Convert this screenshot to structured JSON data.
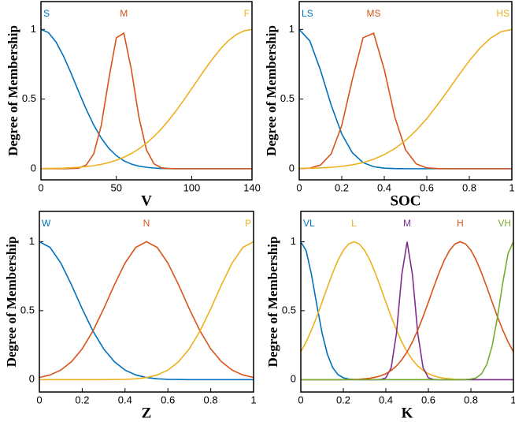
{
  "chart_data": [
    {
      "type": "line",
      "xlabel": "V",
      "ylabel": "Degree of Membership",
      "x": [
        0,
        5,
        10,
        15,
        20,
        25,
        30,
        35,
        40,
        45,
        50,
        55,
        60,
        65,
        70,
        75,
        80,
        85,
        90,
        95,
        100,
        105,
        110,
        115,
        120,
        125,
        130,
        135,
        140
      ],
      "series": [
        {
          "name": "S",
          "color": "#0072bd",
          "values": [
            1,
            0.977,
            0.91,
            0.808,
            0.685,
            0.554,
            0.427,
            0.314,
            0.22,
            0.147,
            0.094,
            0.057,
            0.033,
            0.018,
            0.01,
            0.005,
            0.002,
            0.001,
            0,
            0,
            0,
            0,
            0,
            0,
            0,
            0,
            0,
            0,
            0
          ]
        },
        {
          "name": "M",
          "color": "#d95319",
          "values": [
            0,
            0,
            0,
            0,
            0.001,
            0.004,
            0.026,
            0.106,
            0.31,
            0.642,
            0.94,
            0.973,
            0.71,
            0.369,
            0.135,
            0.035,
            0.006,
            0.001,
            0,
            0,
            0,
            0,
            0,
            0,
            0,
            0,
            0,
            0,
            0
          ]
        },
        {
          "name": "F",
          "color": "#edb120",
          "values": [
            0.001,
            0.002,
            0.003,
            0.004,
            0.007,
            0.01,
            0.015,
            0.022,
            0.031,
            0.044,
            0.061,
            0.082,
            0.109,
            0.143,
            0.183,
            0.232,
            0.287,
            0.351,
            0.421,
            0.496,
            0.575,
            0.654,
            0.732,
            0.805,
            0.871,
            0.925,
            0.966,
            0.991,
            1
          ]
        }
      ],
      "xlim": [
        0,
        140
      ],
      "ylim": [
        -0.08,
        1.2
      ],
      "xticks": [
        0,
        50,
        100,
        140
      ],
      "yticks": [
        0,
        0.5,
        1
      ]
    },
    {
      "type": "line",
      "xlabel": "SOC",
      "ylabel": "Degree of Membership",
      "x": [
        0,
        0.05,
        0.1,
        0.15,
        0.2,
        0.25,
        0.3,
        0.35,
        0.4,
        0.45,
        0.5,
        0.55,
        0.6,
        0.65,
        0.7,
        0.75,
        0.8,
        0.85,
        0.9,
        0.95,
        1
      ],
      "series": [
        {
          "name": "LS",
          "color": "#0072bd",
          "values": [
            1,
            0.917,
            0.707,
            0.458,
            0.249,
            0.114,
            0.044,
            0.014,
            0.004,
            0.001,
            0,
            0,
            0,
            0,
            0,
            0,
            0,
            0,
            0,
            0,
            0
          ]
        },
        {
          "name": "MS",
          "color": "#d95319",
          "values": [
            0.001,
            0.004,
            0.026,
            0.106,
            0.31,
            0.642,
            0.94,
            0.973,
            0.712,
            0.369,
            0.135,
            0.035,
            0.006,
            0.001,
            0,
            0,
            0,
            0,
            0,
            0,
            0
          ]
        },
        {
          "name": "HS",
          "color": "#edb120",
          "values": [
            0.002,
            0.003,
            0.006,
            0.01,
            0.017,
            0.028,
            0.044,
            0.068,
            0.101,
            0.145,
            0.203,
            0.275,
            0.36,
            0.458,
            0.563,
            0.671,
            0.775,
            0.866,
            0.938,
            0.984,
            1
          ]
        }
      ],
      "xlim": [
        0,
        1
      ],
      "ylim": [
        -0.08,
        1.2
      ],
      "xticks": [
        0,
        0.2,
        0.4,
        0.6,
        0.8,
        1
      ],
      "yticks": [
        0,
        0.5,
        1
      ]
    },
    {
      "type": "line",
      "xlabel": "Z",
      "ylabel": "Degree of Membership",
      "x": [
        0,
        0.05,
        0.1,
        0.15,
        0.2,
        0.25,
        0.3,
        0.35,
        0.4,
        0.45,
        0.5,
        0.55,
        0.6,
        0.65,
        0.7,
        0.75,
        0.8,
        0.85,
        0.9,
        0.95,
        1
      ],
      "series": [
        {
          "name": "W",
          "color": "#0072bd",
          "values": [
            1,
            0.959,
            0.846,
            0.687,
            0.513,
            0.353,
            0.223,
            0.13,
            0.069,
            0.034,
            0.015,
            0.006,
            0.002,
            0.001,
            0,
            0,
            0,
            0,
            0,
            0,
            0
          ]
        },
        {
          "name": "N",
          "color": "#d95319",
          "values": [
            0.015,
            0.034,
            0.069,
            0.13,
            0.223,
            0.353,
            0.513,
            0.687,
            0.846,
            0.959,
            1,
            0.959,
            0.846,
            0.687,
            0.513,
            0.353,
            0.223,
            0.13,
            0.069,
            0.034,
            0.015
          ]
        },
        {
          "name": "P",
          "color": "#edb120",
          "values": [
            0,
            0,
            0,
            0,
            0,
            0,
            0,
            0.001,
            0.002,
            0.006,
            0.015,
            0.034,
            0.069,
            0.13,
            0.223,
            0.353,
            0.513,
            0.687,
            0.846,
            0.959,
            1
          ]
        }
      ],
      "xlim": [
        0,
        1
      ],
      "ylim": [
        -0.09,
        1.22
      ],
      "xticks": [
        0,
        0.2,
        0.4,
        0.6,
        0.8,
        1
      ],
      "yticks": [
        0,
        0.5,
        1
      ]
    },
    {
      "type": "line",
      "xlabel": "K",
      "ylabel": "Degree of Membership",
      "x": [
        0,
        0.025,
        0.05,
        0.075,
        0.1,
        0.125,
        0.15,
        0.175,
        0.2,
        0.225,
        0.25,
        0.275,
        0.3,
        0.325,
        0.35,
        0.375,
        0.4,
        0.425,
        0.45,
        0.475,
        0.5,
        0.525,
        0.55,
        0.575,
        0.6,
        0.625,
        0.65,
        0.675,
        0.7,
        0.725,
        0.75,
        0.775,
        0.8,
        0.825,
        0.85,
        0.875,
        0.9,
        0.925,
        0.95,
        0.975,
        1
      ],
      "series": [
        {
          "name": "VL",
          "color": "#0072bd",
          "values": [
            1,
            0.935,
            0.763,
            0.544,
            0.338,
            0.184,
            0.087,
            0.036,
            0.013,
            0.004,
            0.001,
            0,
            0,
            0,
            0,
            0,
            0,
            0,
            0,
            0,
            0,
            0,
            0,
            0,
            0,
            0,
            0,
            0,
            0,
            0,
            0,
            0,
            0,
            0,
            0,
            0,
            0,
            0,
            0,
            0,
            0
          ]
        },
        {
          "name": "L",
          "color": "#edb120",
          "values": [
            0.201,
            0.273,
            0.359,
            0.456,
            0.562,
            0.67,
            0.774,
            0.866,
            0.938,
            0.984,
            1,
            0.984,
            0.938,
            0.866,
            0.774,
            0.67,
            0.562,
            0.456,
            0.359,
            0.273,
            0.201,
            0.144,
            0.099,
            0.067,
            0.043,
            0.027,
            0.017,
            0.01,
            0.006,
            0.003,
            0.002,
            0.001,
            0,
            0,
            0,
            0,
            0,
            0,
            0,
            0,
            0
          ]
        },
        {
          "name": "M",
          "color": "#7e2f8e",
          "values": [
            0,
            0,
            0,
            0,
            0,
            0,
            0,
            0,
            0,
            0,
            0,
            0,
            0,
            0,
            0,
            0.001,
            0.013,
            0.087,
            0.337,
            0.762,
            1,
            0.762,
            0.337,
            0.087,
            0.013,
            0.001,
            0,
            0,
            0,
            0,
            0,
            0,
            0,
            0,
            0,
            0,
            0,
            0,
            0,
            0,
            0
          ]
        },
        {
          "name": "H",
          "color": "#d95319",
          "values": [
            0,
            0,
            0,
            0,
            0,
            0,
            0,
            0,
            0,
            0.001,
            0.002,
            0.003,
            0.006,
            0.01,
            0.017,
            0.027,
            0.043,
            0.067,
            0.099,
            0.144,
            0.201,
            0.273,
            0.359,
            0.456,
            0.562,
            0.67,
            0.774,
            0.866,
            0.938,
            0.984,
            1,
            0.984,
            0.938,
            0.866,
            0.774,
            0.67,
            0.562,
            0.456,
            0.359,
            0.273,
            0.201
          ]
        },
        {
          "name": "VH",
          "color": "#77ac30",
          "values": [
            0,
            0,
            0,
            0,
            0,
            0,
            0,
            0,
            0,
            0,
            0,
            0,
            0,
            0,
            0,
            0,
            0,
            0,
            0,
            0,
            0,
            0,
            0,
            0,
            0,
            0,
            0,
            0,
            0,
            0,
            0,
            0.001,
            0.004,
            0.013,
            0.042,
            0.111,
            0.245,
            0.453,
            0.703,
            0.916,
            1
          ]
        }
      ],
      "xlim": [
        0,
        1
      ],
      "ylim": [
        -0.09,
        1.22
      ],
      "xticks": [
        0,
        0.2,
        0.4,
        0.6,
        0.8,
        1
      ],
      "yticks": [
        0,
        0.5,
        1
      ]
    }
  ]
}
